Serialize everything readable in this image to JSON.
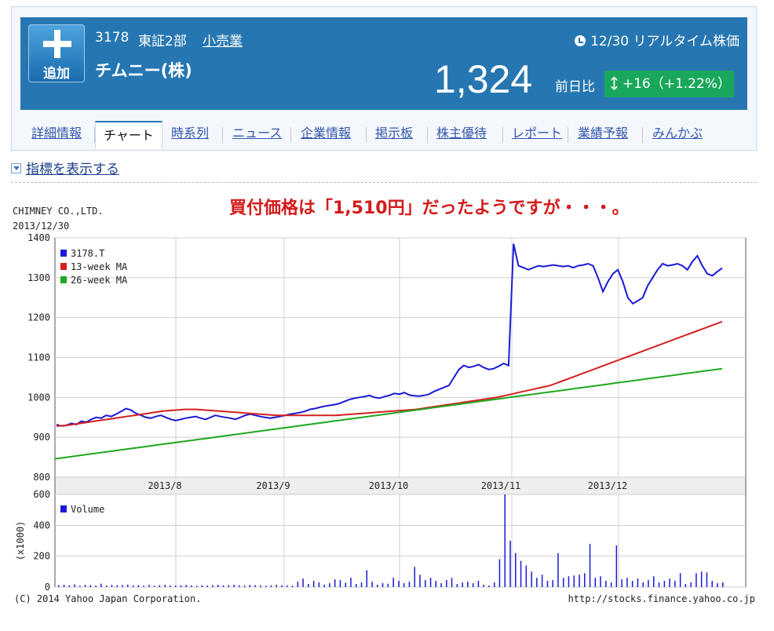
{
  "header": {
    "add_label": "追加",
    "code": "3178",
    "market": "東証2部",
    "industry": "小売業",
    "company": "チムニー(株)",
    "realtime": "12/30 リアルタイム株価",
    "price": "1,324",
    "change_label": "前日比",
    "change": "+16（+1.22%）"
  },
  "tabs": [
    "詳細情報",
    "チャート",
    "時系列",
    "ニュース",
    "企業情報",
    "掲示板",
    "株主優待",
    "レポート",
    "業績予報",
    "みんかぶ"
  ],
  "active_tab": "チャート",
  "indicator_toggle": "指標を表示する",
  "annotation": "買付価格は「1,510円」だったようですが・・・。",
  "chart_data": [
    {
      "type": "line",
      "title": "CHIMNEY CO.,LTD.",
      "subtitle": "2013/12/30",
      "ylim": [
        800,
        1400
      ],
      "yticks": [
        800,
        900,
        1000,
        1100,
        1200,
        1300,
        1400
      ],
      "xtick_labels": [
        "2013/8",
        "2013/9",
        "2013/10",
        "2013/11",
        "2013/12"
      ],
      "legend_position": "top-left",
      "grid": true,
      "series": [
        {
          "name": "3178.T",
          "color": "#1a1ad6",
          "values": [
            932,
            928,
            930,
            935,
            932,
            940,
            938,
            945,
            950,
            948,
            955,
            952,
            958,
            965,
            972,
            968,
            960,
            955,
            950,
            948,
            952,
            955,
            950,
            945,
            942,
            945,
            948,
            950,
            952,
            948,
            945,
            950,
            955,
            952,
            950,
            948,
            945,
            950,
            955,
            958,
            955,
            952,
            950,
            948,
            950,
            952,
            955,
            958,
            960,
            962,
            965,
            970,
            972,
            975,
            978,
            980,
            982,
            985,
            990,
            995,
            998,
            1000,
            1002,
            1005,
            1000,
            998,
            1002,
            1005,
            1010,
            1008,
            1012,
            1006,
            1004,
            1003,
            1005,
            1008,
            1015,
            1020,
            1025,
            1030,
            1050,
            1070,
            1080,
            1075,
            1078,
            1082,
            1075,
            1070,
            1072,
            1078,
            1085,
            1080,
            1385,
            1330,
            1325,
            1320,
            1325,
            1330,
            1328,
            1330,
            1332,
            1330,
            1328,
            1330,
            1325,
            1330,
            1332,
            1335,
            1330,
            1300,
            1265,
            1290,
            1310,
            1320,
            1290,
            1250,
            1235,
            1242,
            1250,
            1280,
            1300,
            1320,
            1335,
            1330,
            1332,
            1335,
            1330,
            1320,
            1340,
            1355,
            1330,
            1310,
            1305,
            1315,
            1324
          ]
        },
        {
          "name": "13-week MA",
          "color": "#d42020",
          "values": [
            928,
            929,
            930,
            932,
            934,
            936,
            938,
            940,
            942,
            944,
            946,
            948,
            950,
            952,
            954,
            956,
            958,
            960,
            962,
            964,
            966,
            967,
            968,
            969,
            970,
            970,
            970,
            969,
            968,
            967,
            966,
            965,
            964,
            963,
            962,
            961,
            960,
            959,
            958,
            957,
            956,
            955,
            955,
            955,
            955,
            955,
            955,
            955,
            955,
            955,
            955,
            955,
            955,
            956,
            957,
            958,
            959,
            960,
            961,
            962,
            963,
            964,
            965,
            966,
            967,
            968,
            969,
            970,
            972,
            974,
            976,
            978,
            980,
            982,
            984,
            986,
            988,
            990,
            992,
            994,
            996,
            998,
            1000,
            1003,
            1006,
            1009,
            1012,
            1015,
            1018,
            1021,
            1024,
            1027,
            1030,
            1035,
            1040,
            1045,
            1050,
            1055,
            1060,
            1065,
            1070,
            1075,
            1080,
            1085,
            1090,
            1095,
            1100,
            1105,
            1110,
            1115,
            1120,
            1125,
            1130,
            1135,
            1140,
            1145,
            1150,
            1155,
            1160,
            1165,
            1170,
            1175,
            1180,
            1185,
            1190
          ]
        },
        {
          "name": "26-week MA",
          "color": "#1fa81f",
          "values": [
            846,
            848,
            850,
            852,
            854,
            856,
            858,
            860,
            862,
            864,
            866,
            868,
            870,
            872,
            874,
            876,
            878,
            880,
            882,
            884,
            886,
            888,
            890,
            892,
            894,
            896,
            898,
            900,
            902,
            904,
            906,
            908,
            910,
            912,
            914,
            916,
            918,
            920,
            922,
            924,
            926,
            928,
            930,
            932,
            934,
            936,
            938,
            940,
            942,
            944,
            946,
            948,
            950,
            952,
            954,
            956,
            958,
            960,
            962,
            964,
            966,
            968,
            970,
            972,
            974,
            976,
            978,
            980,
            982,
            984,
            986,
            988,
            990,
            992,
            994,
            996,
            998,
            1000,
            1002,
            1004,
            1006,
            1008,
            1010,
            1012,
            1014,
            1016,
            1018,
            1020,
            1022,
            1024,
            1026,
            1028,
            1030,
            1032,
            1034,
            1036,
            1038,
            1040,
            1042,
            1044,
            1046,
            1048,
            1050,
            1052,
            1054,
            1056,
            1058,
            1060,
            1062,
            1064,
            1066,
            1068,
            1070,
            1072
          ]
        }
      ]
    },
    {
      "type": "bar",
      "ylabel": "(x1000)",
      "ylim": [
        0,
        600
      ],
      "yticks": [
        0,
        200,
        400,
        600
      ],
      "legend_position": "top-left",
      "series": [
        {
          "name": "Volume",
          "color": "#1a1ad6",
          "values": [
            12,
            15,
            10,
            18,
            8,
            14,
            12,
            10,
            22,
            9,
            14,
            11,
            13,
            16,
            10,
            12,
            9,
            14,
            8,
            12,
            15,
            10,
            9,
            11,
            13,
            10,
            8,
            12,
            9,
            11,
            14,
            10,
            12,
            15,
            11,
            9,
            13,
            12,
            10,
            8,
            11,
            14,
            12,
            10,
            9,
            35,
            55,
            20,
            40,
            30,
            15,
            25,
            50,
            45,
            28,
            60,
            20,
            30,
            110,
            35,
            15,
            25,
            22,
            60,
            40,
            25,
            35,
            130,
            80,
            45,
            60,
            40,
            25,
            45,
            60,
            20,
            30,
            35,
            25,
            40,
            15,
            10,
            30,
            180,
            600,
            300,
            220,
            170,
            140,
            100,
            60,
            80,
            40,
            45,
            220,
            60,
            70,
            75,
            80,
            90,
            280,
            60,
            70,
            40,
            30,
            270,
            50,
            60,
            40,
            55,
            30,
            45,
            70,
            30,
            40,
            55,
            40,
            90,
            20,
            30,
            90,
            100,
            95,
            40,
            25,
            30
          ]
        }
      ]
    }
  ],
  "chart_text": {
    "title": "CHIMNEY CO.,LTD.",
    "date": "2013/12/30",
    "copyright": "(C) 2014 Yahoo Japan Corporation.",
    "source": "http://stocks.finance.yahoo.co.jp"
  }
}
